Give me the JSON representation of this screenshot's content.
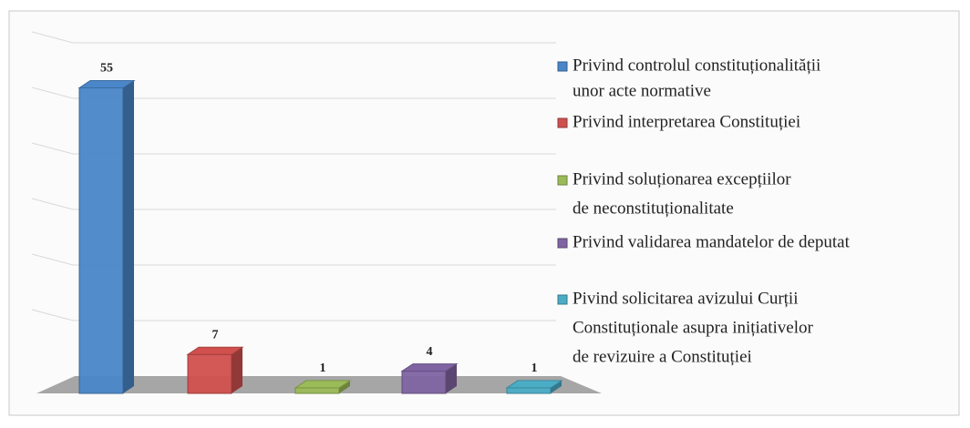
{
  "chart_data": {
    "type": "bar3d",
    "categories": [
      [
        "Privind controlul constituționalității",
        "unor acte normative"
      ],
      [
        "Privind interpretarea Constituției"
      ],
      [
        "Privind soluționarea excepțiilor",
        "de neconstituționalitate"
      ],
      [
        "Privind validarea mandatelor de deputat"
      ],
      [
        "Pivind solicitarea avizului Curții",
        "Constituționale asupra inițiativelor",
        "de revizuire a Constituției"
      ]
    ],
    "values": [
      55,
      7,
      1,
      4,
      1
    ],
    "colors": [
      "#4a86c8",
      "#d0504d",
      "#9bbb59",
      "#8064a2",
      "#4bacc6"
    ],
    "ylim": [
      0,
      60
    ],
    "yticks": [
      0,
      10,
      20,
      30,
      40,
      50,
      60
    ],
    "grid": true,
    "legend": "right"
  }
}
